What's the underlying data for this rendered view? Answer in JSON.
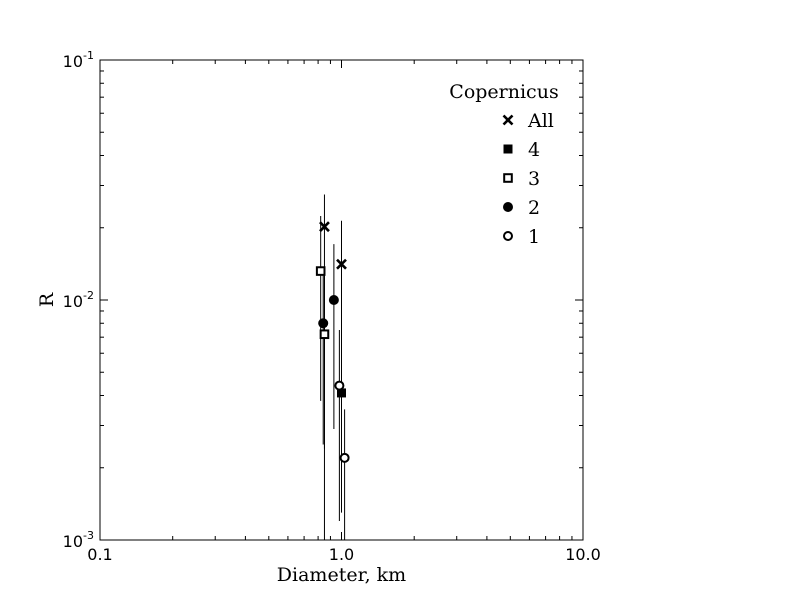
{
  "chart_data": {
    "type": "scatter",
    "xlabel": "Diameter, km",
    "ylabel": "R",
    "xscale": "log",
    "yscale": "log",
    "xlim": [
      0.1,
      10.0
    ],
    "ylim": [
      0.001,
      0.1
    ],
    "x_ticks": [
      {
        "value": 0.1,
        "label": "0.1"
      },
      {
        "value": 1.0,
        "label": "1.0"
      },
      {
        "value": 10.0,
        "label": "10.0"
      }
    ],
    "y_ticks": [
      {
        "value": 0.001,
        "mantissa": "10",
        "exp": "-3"
      },
      {
        "value": 0.01,
        "mantissa": "10",
        "exp": "-2"
      },
      {
        "value": 0.1,
        "mantissa": "10",
        "exp": "-1"
      }
    ],
    "grid": false,
    "legend": {
      "title": "Copernicus",
      "placement": "top-right"
    },
    "series": [
      {
        "name": "All",
        "marker": "x",
        "points": [
          {
            "x": 0.85,
            "y": 0.0202,
            "ylow": 0.0024,
            "yhigh": 0.0275
          },
          {
            "x": 1.0,
            "y": 0.0141,
            "ylow": 0.0042,
            "yhigh": 0.0214
          }
        ]
      },
      {
        "name": "4",
        "marker": "square-filled",
        "points": [
          {
            "x": 1.0,
            "y": 0.0041,
            "ylow": 0.0013,
            "yhigh": 0.007
          }
        ]
      },
      {
        "name": "3",
        "marker": "square-open",
        "points": [
          {
            "x": 0.82,
            "y": 0.0132,
            "ylow": 0.0038,
            "yhigh": 0.0224
          },
          {
            "x": 0.85,
            "y": 0.0072,
            "ylow": 0.0009,
            "yhigh": 0.0132
          }
        ]
      },
      {
        "name": "2",
        "marker": "circle-filled",
        "points": [
          {
            "x": 0.93,
            "y": 0.01,
            "ylow": 0.0029,
            "yhigh": 0.0171
          },
          {
            "x": 0.84,
            "y": 0.008,
            "ylow": 0.0025,
            "yhigh": 0.0135
          }
        ]
      },
      {
        "name": "1",
        "marker": "circle-open",
        "points": [
          {
            "x": 0.98,
            "y": 0.0044,
            "ylow": 0.0012,
            "yhigh": 0.0075
          },
          {
            "x": 1.03,
            "y": 0.0022,
            "ylow": 0.0009,
            "yhigh": 0.0035
          }
        ]
      }
    ]
  }
}
